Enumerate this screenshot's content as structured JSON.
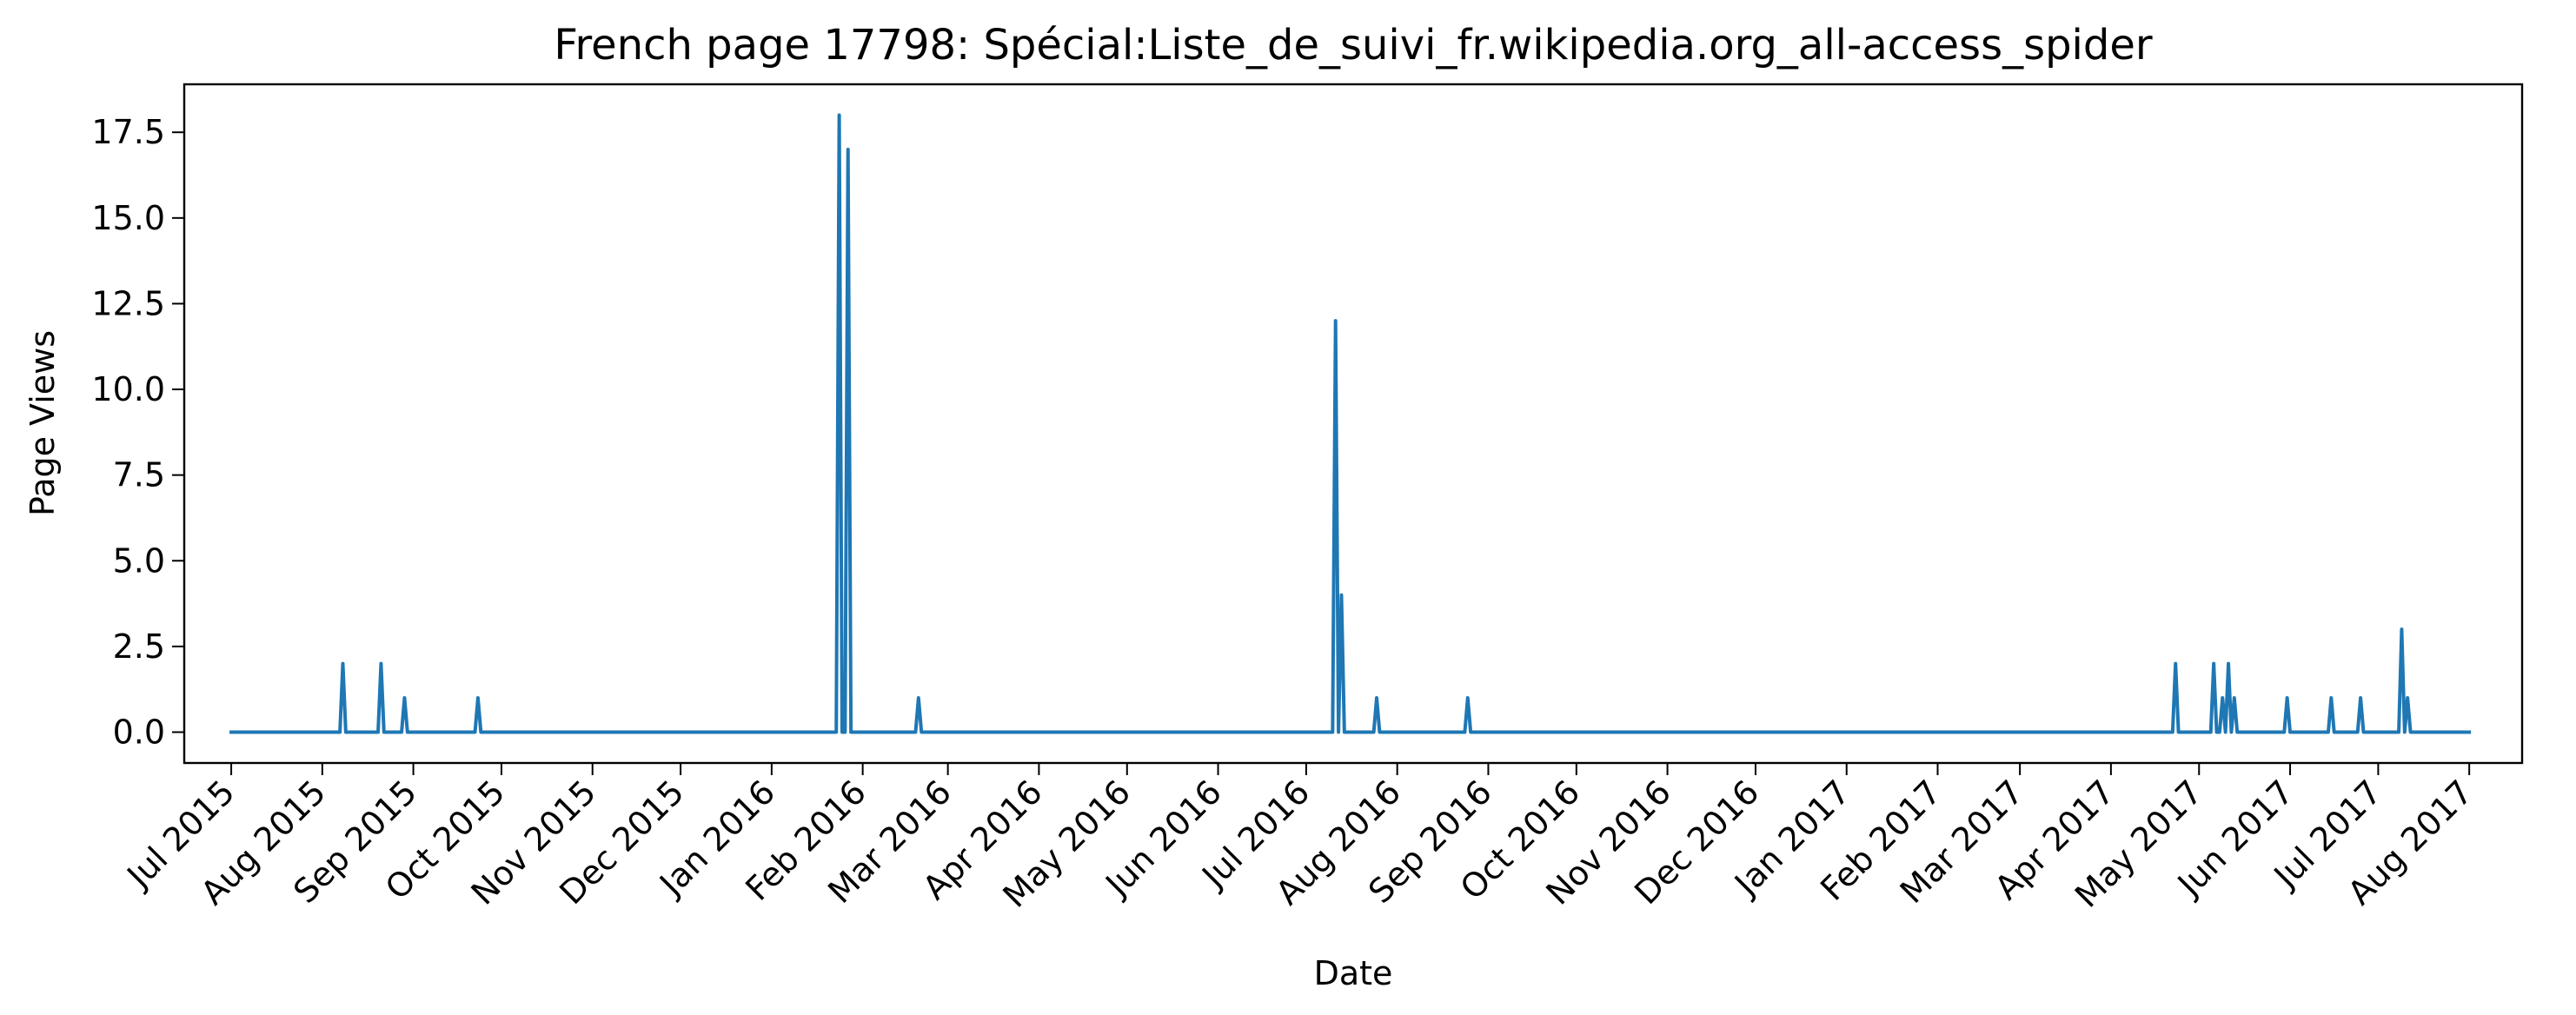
{
  "chart_data": {
    "type": "line",
    "title": "French page 17798: Spécial:Liste_de_suivi_fr.wikipedia.org_all-access_spider",
    "xlabel": "Date",
    "ylabel": "Page Views",
    "x_range": [
      "2015-06-15",
      "2017-08-19"
    ],
    "ylim": [
      -0.9,
      18.9
    ],
    "grid": false,
    "color": "#1f77b4",
    "x_ticks": [
      {
        "date": "2015-07-01",
        "label": "Jul 2015"
      },
      {
        "date": "2015-08-01",
        "label": "Aug 2015"
      },
      {
        "date": "2015-09-01",
        "label": "Sep 2015"
      },
      {
        "date": "2015-10-01",
        "label": "Oct 2015"
      },
      {
        "date": "2015-11-01",
        "label": "Nov 2015"
      },
      {
        "date": "2015-12-01",
        "label": "Dec 2015"
      },
      {
        "date": "2016-01-01",
        "label": "Jan 2016"
      },
      {
        "date": "2016-02-01",
        "label": "Feb 2016"
      },
      {
        "date": "2016-03-01",
        "label": "Mar 2016"
      },
      {
        "date": "2016-04-01",
        "label": "Apr 2016"
      },
      {
        "date": "2016-05-01",
        "label": "May 2016"
      },
      {
        "date": "2016-06-01",
        "label": "Jun 2016"
      },
      {
        "date": "2016-07-01",
        "label": "Jul 2016"
      },
      {
        "date": "2016-08-01",
        "label": "Aug 2016"
      },
      {
        "date": "2016-09-01",
        "label": "Sep 2016"
      },
      {
        "date": "2016-10-01",
        "label": "Oct 2016"
      },
      {
        "date": "2016-11-01",
        "label": "Nov 2016"
      },
      {
        "date": "2016-12-01",
        "label": "Dec 2016"
      },
      {
        "date": "2017-01-01",
        "label": "Jan 2017"
      },
      {
        "date": "2017-02-01",
        "label": "Feb 2017"
      },
      {
        "date": "2017-03-01",
        "label": "Mar 2017"
      },
      {
        "date": "2017-04-01",
        "label": "Apr 2017"
      },
      {
        "date": "2017-05-01",
        "label": "May 2017"
      },
      {
        "date": "2017-06-01",
        "label": "Jun 2017"
      },
      {
        "date": "2017-07-01",
        "label": "Jul 2017"
      },
      {
        "date": "2017-08-01",
        "label": "Aug 2017"
      }
    ],
    "y_ticks": [
      {
        "value": 0.0,
        "label": "0.0"
      },
      {
        "value": 2.5,
        "label": "2.5"
      },
      {
        "value": 5.0,
        "label": "5.0"
      },
      {
        "value": 7.5,
        "label": "7.5"
      },
      {
        "value": 10.0,
        "label": "10.0"
      },
      {
        "value": 12.5,
        "label": "12.5"
      },
      {
        "value": 15.0,
        "label": "15.0"
      },
      {
        "value": 17.5,
        "label": "17.5"
      }
    ],
    "series": [
      {
        "start": "2015-07-01",
        "end": "2017-08-01",
        "baseline": 0,
        "nonzero_points": [
          {
            "date": "2015-08-08",
            "value": 2
          },
          {
            "date": "2015-08-21",
            "value": 2
          },
          {
            "date": "2015-08-29",
            "value": 1
          },
          {
            "date": "2015-09-23",
            "value": 1
          },
          {
            "date": "2016-01-24",
            "value": 18
          },
          {
            "date": "2016-01-27",
            "value": 17
          },
          {
            "date": "2016-02-20",
            "value": 1
          },
          {
            "date": "2016-07-11",
            "value": 12
          },
          {
            "date": "2016-07-13",
            "value": 4
          },
          {
            "date": "2016-07-25",
            "value": 1
          },
          {
            "date": "2016-08-25",
            "value": 1
          },
          {
            "date": "2017-04-23",
            "value": 2
          },
          {
            "date": "2017-05-06",
            "value": 2
          },
          {
            "date": "2017-05-09",
            "value": 1
          },
          {
            "date": "2017-05-11",
            "value": 2
          },
          {
            "date": "2017-05-13",
            "value": 1
          },
          {
            "date": "2017-05-31",
            "value": 1
          },
          {
            "date": "2017-06-15",
            "value": 1
          },
          {
            "date": "2017-06-25",
            "value": 1
          },
          {
            "date": "2017-07-09",
            "value": 3
          },
          {
            "date": "2017-07-11",
            "value": 1
          }
        ]
      }
    ]
  }
}
